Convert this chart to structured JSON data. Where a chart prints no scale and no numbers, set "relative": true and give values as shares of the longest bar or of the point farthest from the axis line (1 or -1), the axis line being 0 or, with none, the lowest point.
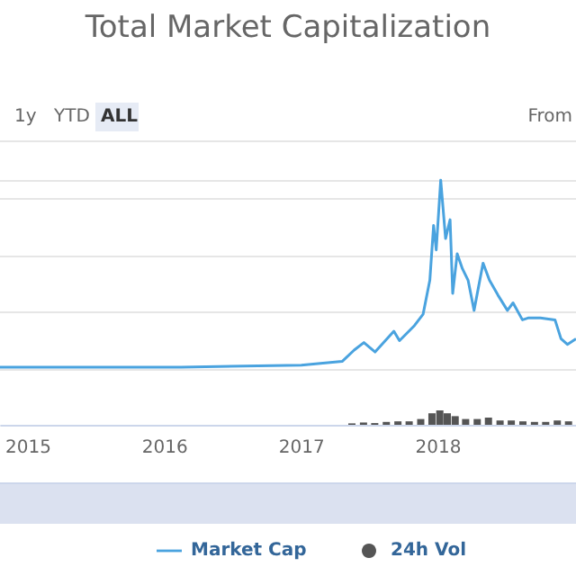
{
  "chart_data": [
    {
      "type": "line",
      "title": "Total Market Capitalization",
      "relative": true,
      "annotations": [
        "1y",
        "YTD",
        "ALL",
        "From"
      ],
      "xlim": [
        "2014-10-20",
        "2019-01-04"
      ],
      "grid": "y",
      "legend": "bottom",
      "series": [
        {
          "name": "Market Cap",
          "color": "#4aa3df",
          "x": [
            "2014-10-20",
            "2016-02-15",
            "2017-01-01",
            "2017-04-20",
            "2017-05-22",
            "2017-06-17",
            "2017-07-17",
            "2017-09-05",
            "2017-09-20",
            "2017-10-30",
            "2017-11-22",
            "2017-12-10",
            "2017-12-20",
            "2017-12-27",
            "2018-01-08",
            "2018-01-21",
            "2018-02-02",
            "2018-02-09",
            "2018-02-21",
            "2018-03-07",
            "2018-03-22",
            "2018-04-07",
            "2018-05-01",
            "2018-05-18",
            "2018-06-10",
            "2018-07-05",
            "2018-07-20",
            "2018-08-14",
            "2018-08-29",
            "2018-10-01",
            "2018-11-09",
            "2018-11-25",
            "2018-12-12",
            "2019-01-04"
          ],
          "values": [
            0.01,
            0.01,
            0.02,
            0.04,
            0.1,
            0.14,
            0.09,
            0.2,
            0.15,
            0.23,
            0.29,
            0.47,
            0.76,
            0.63,
            1,
            0.69,
            0.79,
            0.4,
            0.61,
            0.53,
            0.47,
            0.31,
            0.56,
            0.47,
            0.39,
            0.31,
            0.35,
            0.26,
            0.27,
            0.27,
            0.26,
            0.16,
            0.13,
            0.16
          ]
        }
      ]
    },
    {
      "type": "bar",
      "relative": true,
      "legend": "bottom",
      "xlim": [
        "2014-10-20",
        "2019-01-04"
      ],
      "xticks": [
        {
          "value": "2015-01-01",
          "label": "2015"
        },
        {
          "value": "2016-01-01",
          "label": "2016"
        },
        {
          "value": "2017-01-01",
          "label": "2017"
        },
        {
          "value": "2018-01-01",
          "label": "2018"
        }
      ],
      "series": [
        {
          "name": "24h Vol",
          "color": "#555555",
          "x": [
            "2017-05-15",
            "2017-06-15",
            "2017-07-15",
            "2017-08-15",
            "2017-09-15",
            "2017-10-15",
            "2017-11-15",
            "2017-12-15",
            "2018-01-05",
            "2018-01-25",
            "2018-02-15",
            "2018-03-15",
            "2018-04-15",
            "2018-05-15",
            "2018-06-15",
            "2018-07-15",
            "2018-08-15",
            "2018-09-15",
            "2018-10-15",
            "2018-11-15",
            "2018-12-15"
          ],
          "values": [
            0.1,
            0.16,
            0.12,
            0.2,
            0.24,
            0.24,
            0.4,
            0.8,
            1,
            0.8,
            0.6,
            0.4,
            0.4,
            0.5,
            0.3,
            0.3,
            0.24,
            0.2,
            0.2,
            0.3,
            0.24
          ]
        }
      ]
    }
  ]
}
